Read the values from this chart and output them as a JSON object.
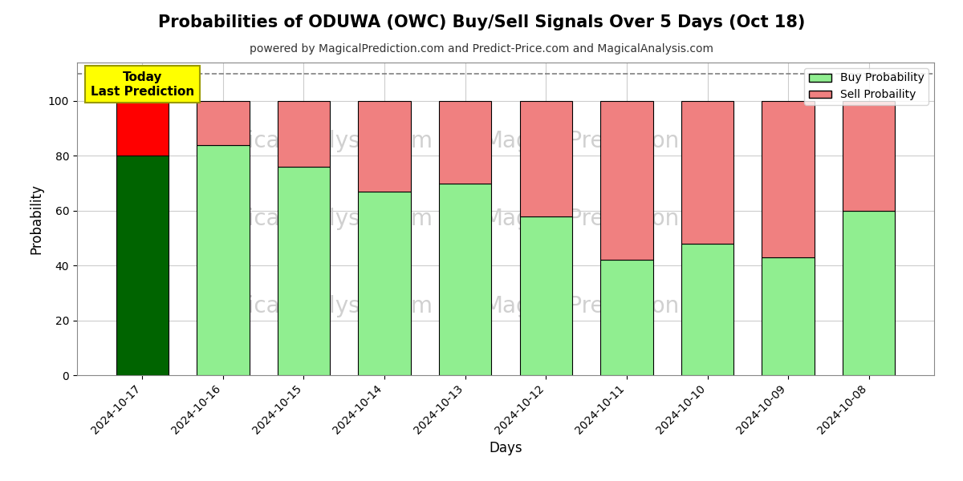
{
  "title": "Probabilities of ODUWA (OWC) Buy/Sell Signals Over 5 Days (Oct 18)",
  "subtitle": "powered by MagicalPrediction.com and Predict-Price.com and MagicalAnalysis.com",
  "xlabel": "Days",
  "ylabel": "Probability",
  "categories": [
    "2024-10-17",
    "2024-10-16",
    "2024-10-15",
    "2024-10-14",
    "2024-10-13",
    "2024-10-12",
    "2024-10-11",
    "2024-10-10",
    "2024-10-09",
    "2024-10-08"
  ],
  "buy_values": [
    80,
    84,
    76,
    67,
    70,
    58,
    42,
    48,
    43,
    60
  ],
  "sell_values": [
    20,
    16,
    24,
    33,
    30,
    42,
    58,
    52,
    57,
    40
  ],
  "today_buy_color": "#006400",
  "today_sell_color": "#FF0000",
  "buy_color": "#90EE90",
  "sell_color": "#F08080",
  "bar_edge_color": "#000000",
  "dashed_line_y": 110,
  "ylim": [
    0,
    114
  ],
  "yticks": [
    0,
    20,
    40,
    60,
    80,
    100
  ],
  "grid_color": "#cccccc",
  "bg_color": "#ffffff",
  "watermark_color": "#d0d0d0",
  "today_label": "Today\nLast Prediction",
  "today_box_color": "#FFFF00",
  "legend_buy_label": "Buy Probability",
  "legend_sell_label": "Sell Probaility"
}
